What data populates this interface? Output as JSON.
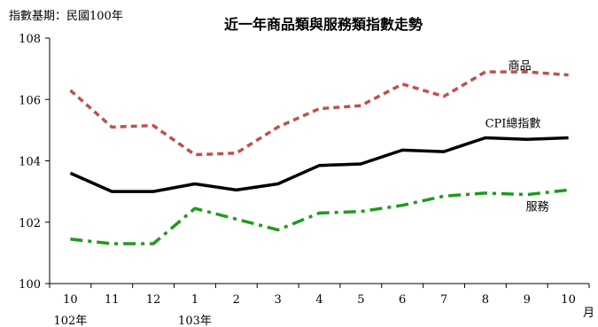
{
  "chart_data": {
    "type": "line",
    "title": "近一年商品類與服務類指數走勢",
    "base_note": "指數基期：民國100年",
    "x_unit": "月",
    "categories": [
      "10",
      "11",
      "12",
      "1",
      "2",
      "3",
      "4",
      "5",
      "6",
      "7",
      "8",
      "9",
      "10"
    ],
    "year_labels": [
      {
        "index": 0,
        "label": "102年"
      },
      {
        "index": 3,
        "label": "103年"
      }
    ],
    "ylim": [
      100,
      108
    ],
    "yticks": [
      100,
      102,
      104,
      106,
      108
    ],
    "grid": false,
    "series": [
      {
        "name": "商品",
        "color": "#c0504d",
        "style": "dashed",
        "values": [
          106.3,
          105.1,
          105.15,
          104.2,
          104.25,
          105.1,
          105.7,
          105.8,
          106.5,
          106.1,
          106.9,
          106.9,
          106.8
        ]
      },
      {
        "name": "CPI總指數",
        "color": "#000000",
        "style": "solid",
        "values": [
          103.6,
          103.0,
          103.0,
          103.25,
          103.05,
          103.25,
          103.85,
          103.9,
          104.35,
          104.3,
          104.75,
          104.7,
          104.75
        ]
      },
      {
        "name": "服務",
        "color": "#1e9b1e",
        "style": "dashdot",
        "values": [
          101.45,
          101.3,
          101.3,
          102.45,
          102.1,
          101.75,
          102.3,
          102.35,
          102.55,
          102.85,
          102.95,
          102.9,
          103.05
        ]
      }
    ]
  }
}
